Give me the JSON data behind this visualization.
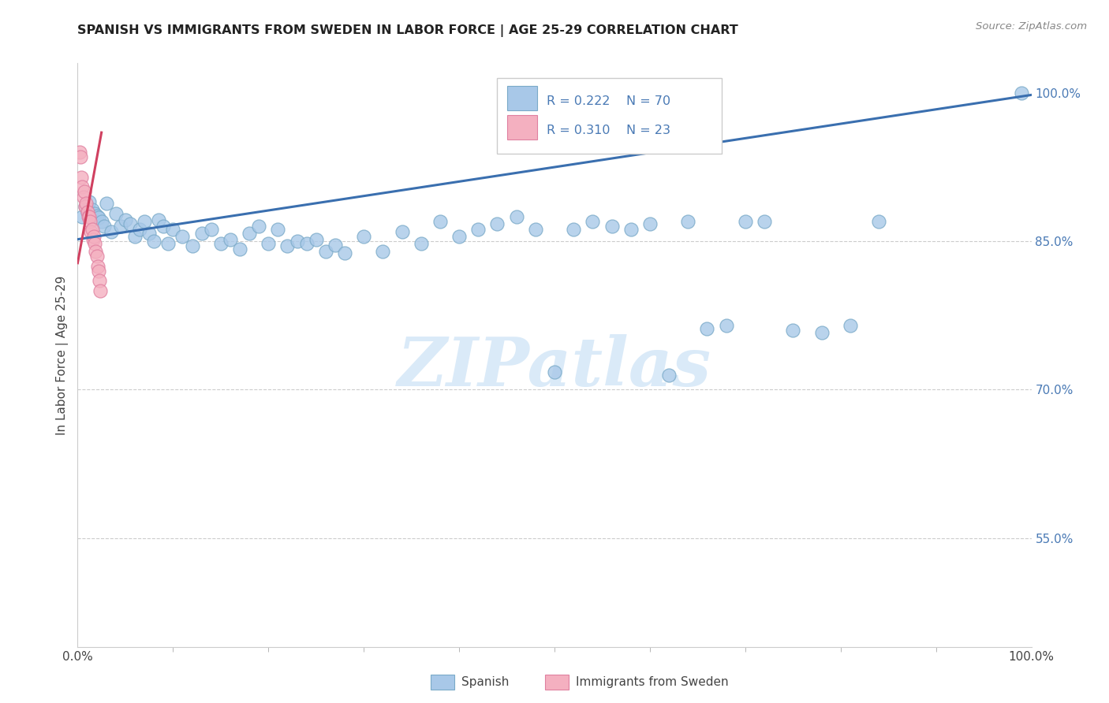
{
  "title": "SPANISH VS IMMIGRANTS FROM SWEDEN IN LABOR FORCE | AGE 25-29 CORRELATION CHART",
  "source": "Source: ZipAtlas.com",
  "ylabel": "In Labor Force | Age 25-29",
  "xlim": [
    0.0,
    1.0
  ],
  "ylim": [
    0.44,
    1.03
  ],
  "blue_color_face": "#a8c8e8",
  "blue_color_edge": "#7aaac8",
  "pink_color_face": "#f4b0c0",
  "pink_color_edge": "#e080a0",
  "blue_line_color": "#3a6faf",
  "pink_line_color": "#d04060",
  "right_tick_color": "#4a7ab5",
  "watermark_color": "#daeaf8",
  "blue_x": [
    0.005,
    0.008,
    0.01,
    0.012,
    0.015,
    0.018,
    0.02,
    0.022,
    0.025,
    0.028,
    0.03,
    0.035,
    0.04,
    0.045,
    0.05,
    0.055,
    0.06,
    0.065,
    0.07,
    0.075,
    0.08,
    0.085,
    0.09,
    0.095,
    0.1,
    0.11,
    0.12,
    0.13,
    0.14,
    0.15,
    0.16,
    0.17,
    0.18,
    0.19,
    0.2,
    0.21,
    0.22,
    0.23,
    0.24,
    0.25,
    0.26,
    0.27,
    0.28,
    0.3,
    0.32,
    0.34,
    0.36,
    0.38,
    0.4,
    0.42,
    0.44,
    0.46,
    0.48,
    0.5,
    0.52,
    0.54,
    0.56,
    0.58,
    0.6,
    0.62,
    0.64,
    0.66,
    0.68,
    0.7,
    0.72,
    0.75,
    0.78,
    0.81,
    0.84,
    0.99
  ],
  "blue_y": [
    0.875,
    0.885,
    0.88,
    0.89,
    0.882,
    0.878,
    0.876,
    0.874,
    0.87,
    0.865,
    0.888,
    0.86,
    0.878,
    0.865,
    0.872,
    0.868,
    0.855,
    0.862,
    0.87,
    0.858,
    0.85,
    0.872,
    0.865,
    0.848,
    0.862,
    0.855,
    0.845,
    0.858,
    0.862,
    0.848,
    0.852,
    0.842,
    0.858,
    0.865,
    0.848,
    0.862,
    0.845,
    0.85,
    0.848,
    0.852,
    0.84,
    0.846,
    0.838,
    0.855,
    0.84,
    0.86,
    0.848,
    0.87,
    0.855,
    0.862,
    0.868,
    0.875,
    0.862,
    0.718,
    0.862,
    0.87,
    0.865,
    0.862,
    0.868,
    0.715,
    0.87,
    0.762,
    0.765,
    0.87,
    0.87,
    0.76,
    0.758,
    0.765,
    0.87,
    1.0
  ],
  "pink_x": [
    0.002,
    0.003,
    0.004,
    0.005,
    0.006,
    0.007,
    0.008,
    0.009,
    0.01,
    0.011,
    0.012,
    0.013,
    0.014,
    0.015,
    0.016,
    0.017,
    0.018,
    0.019,
    0.02,
    0.021,
    0.022,
    0.023,
    0.024
  ],
  "pink_y": [
    0.94,
    0.935,
    0.915,
    0.905,
    0.895,
    0.9,
    0.885,
    0.888,
    0.88,
    0.875,
    0.875,
    0.87,
    0.86,
    0.862,
    0.852,
    0.855,
    0.848,
    0.84,
    0.835,
    0.825,
    0.82,
    0.81,
    0.8
  ],
  "blue_trend_x": [
    0.0,
    1.0
  ],
  "blue_trend_y": [
    0.852,
    0.998
  ],
  "pink_trend_x": [
    0.0,
    0.025
  ],
  "pink_trend_y": [
    0.828,
    0.96
  ],
  "legend_r_blue": "R = 0.222",
  "legend_n_blue": "N = 70",
  "legend_r_pink": "R = 0.310",
  "legend_n_pink": "N = 23",
  "label_spanish": "Spanish",
  "label_immigrants": "Immigrants from Sweden"
}
